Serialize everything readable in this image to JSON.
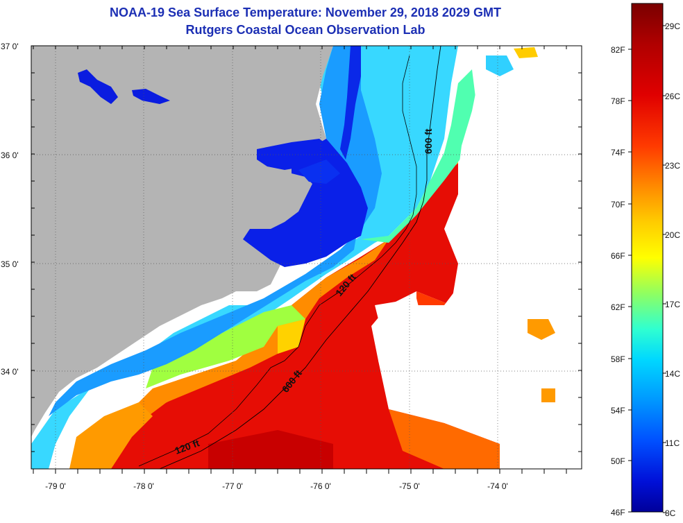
{
  "title": "NOAA-19 Sea Surface Temperature:  November 29, 2018 2029 GMT",
  "subtitle": "Rutgers Coastal Ocean Observation Lab",
  "latitude_labels": [
    "37 0'",
    "36 0'",
    "35 0'",
    "34 0'"
  ],
  "longitude_labels": [
    "-79 0'",
    "-78 0'",
    "-77 0'",
    "-76 0'",
    "-75 0'",
    "-74 0'"
  ],
  "contour_labels": {
    "shelf_120": "120 ft",
    "slope_600": "600 ft"
  },
  "colorbar": {
    "fahrenheit": [
      "82F",
      "78F",
      "74F",
      "70F",
      "66F",
      "62F",
      "58F",
      "54F",
      "50F",
      "46F"
    ],
    "celsius": [
      "29C",
      "26C",
      "23C",
      "20C",
      "17C",
      "14C",
      "11C",
      "8C"
    ]
  },
  "colors": {
    "title": "#1c2fb4",
    "land": "#b4b4b4",
    "cloud": "#ffffff",
    "colormap": [
      "#7a0000",
      "#b00000",
      "#e00000",
      "#ff2a00",
      "#ff6a00",
      "#ff9a00",
      "#ffcc00",
      "#ffff00",
      "#b8ff40",
      "#40ffc0",
      "#00d0ff",
      "#0090ff",
      "#0050ff",
      "#0010e0",
      "#00009a"
    ]
  }
}
